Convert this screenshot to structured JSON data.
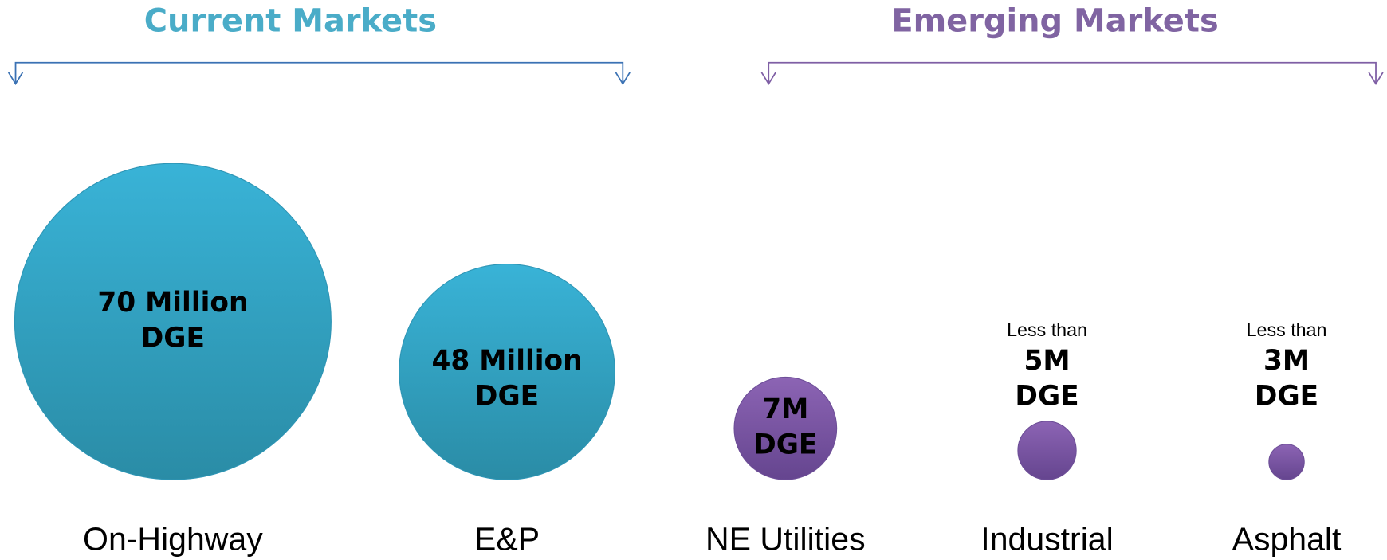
{
  "groups": [
    {
      "title": "Current Markets",
      "items": [
        {
          "label": "On-Highway",
          "value": "70 Million",
          "unit": "DGE"
        },
        {
          "label": "E&P",
          "value": "48 Million",
          "unit": "DGE"
        }
      ]
    },
    {
      "title": "Emerging Markets",
      "items": [
        {
          "label": "NE Utilities",
          "value": "7M",
          "unit": "DGE"
        },
        {
          "label": "Industrial",
          "note": "Less than",
          "value": "5M",
          "unit": "DGE"
        },
        {
          "label": "Asphalt",
          "note": "Less than",
          "value": "3M",
          "unit": "DGE"
        }
      ]
    }
  ]
}
